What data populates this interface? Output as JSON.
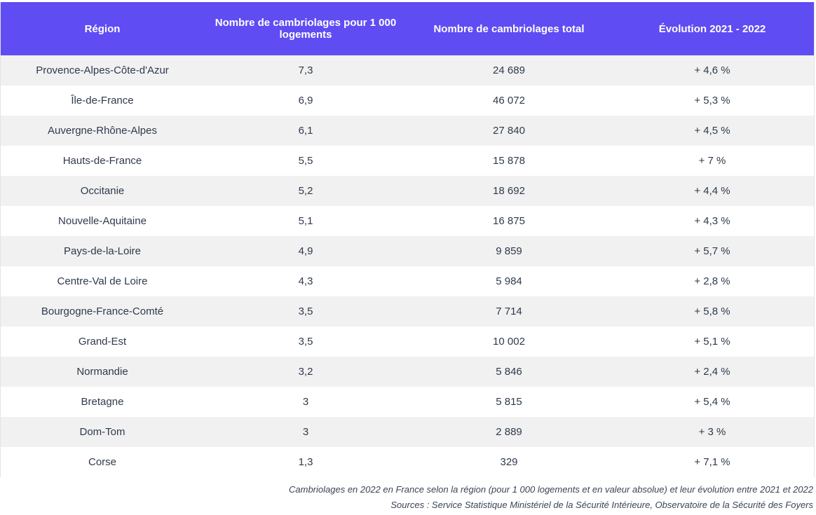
{
  "table": {
    "headers": [
      "Région",
      "Nombre de cambriolages pour 1 000 logements",
      "Nombre de cambriolages total",
      "Évolution 2021 - 2022"
    ],
    "rows": [
      [
        "Provence-Alpes-Côte-d'Azur",
        "7,3",
        "24 689",
        "+ 4,6 %"
      ],
      [
        "Île-de-France",
        "6,9",
        "46 072",
        "+ 5,3 %"
      ],
      [
        "Auvergne-Rhône-Alpes",
        "6,1",
        "27 840",
        "+ 4,5 %"
      ],
      [
        "Hauts-de-France",
        "5,5",
        "15 878",
        "+ 7 %"
      ],
      [
        "Occitanie",
        "5,2",
        "18 692",
        "+ 4,4 %"
      ],
      [
        "Nouvelle-Aquitaine",
        "5,1",
        "16 875",
        "+ 4,3 %"
      ],
      [
        "Pays-de-la-Loire",
        "4,9",
        "9 859",
        "+ 5,7 %"
      ],
      [
        "Centre-Val de Loire",
        "4,3",
        "5 984",
        "+ 2,8 %"
      ],
      [
        "Bourgogne-France-Comté",
        "3,5",
        "7 714",
        "+ 5,8 %"
      ],
      [
        "Grand-Est",
        "3,5",
        "10 002",
        "+ 5,1 %"
      ],
      [
        "Normandie",
        "3,2",
        "5 846",
        "+ 2,4 %"
      ],
      [
        "Bretagne",
        "3",
        "5 815",
        "+ 5,4 %"
      ],
      [
        "Dom-Tom",
        "3",
        "2 889",
        "+ 3 %"
      ],
      [
        "Corse",
        "1,3",
        "329",
        "+ 7,1 %"
      ]
    ]
  },
  "caption": {
    "line1": "Cambriolages en 2022 en France selon la région (pour 1 000 logements et en valeur absolue) et leur évolution entre 2021 et 2022",
    "line2": "Sources : Service Statistique Ministériel de la Sécurité Intérieure, Observatoire de la Sécurité des Foyers"
  },
  "colors": {
    "header_bg": "#5f4cf3",
    "header_text": "#ffffff",
    "row_alt_bg": "#f1f1f1",
    "text": "#2f3a4c"
  }
}
